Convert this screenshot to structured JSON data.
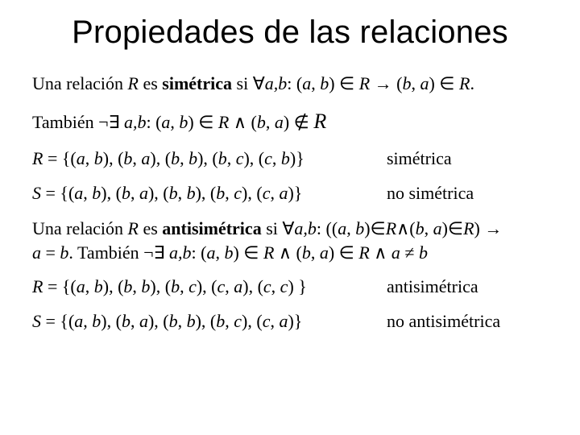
{
  "title": "Propiedades de las relaciones",
  "line_symmetric_def": "Una relación R es simétrica si ∀a,b: (a, b) ∈ R → (b, a) ∈ R.",
  "line_symmetric_alt": "También ¬∃ a,b: (a, b) ∈ R ∧ (b, a) ∉ R",
  "row_R_sym_set": "R = {(a, b), (b, a), (b, b), (b, c), (c, b)}",
  "row_R_sym_label": "simétrica",
  "row_S_sym_set": "S = {(a, b), (b, a), (b, b), (b, c), (c, a)}",
  "row_S_sym_label": "no simétrica",
  "line_antisym_l1": "Una relación R es antisimétrica si ∀a,b: ((a, b)∈R∧(b, a)∈R) →",
  "line_antisym_l2": "a = b. También ¬∃ a,b: (a, b) ∈ R ∧ (b, a) ∈ R ∧ a ≠ b",
  "row_R_anti_set": "R = {(a, b), (b, b), (b, c), (c, a), (c, c) }",
  "row_R_anti_label": "antisimétrica",
  "row_S_anti_set": "S = {(a, b), (b, a), (b, b), (b, c), (c, a)}",
  "row_S_anti_label": "no antisimétrica",
  "font": {
    "title_family": "Arial",
    "title_size": 40,
    "body_family": "Times New Roman",
    "body_size": 22
  },
  "colors": {
    "background": "#ffffff",
    "text": "#000000"
  }
}
